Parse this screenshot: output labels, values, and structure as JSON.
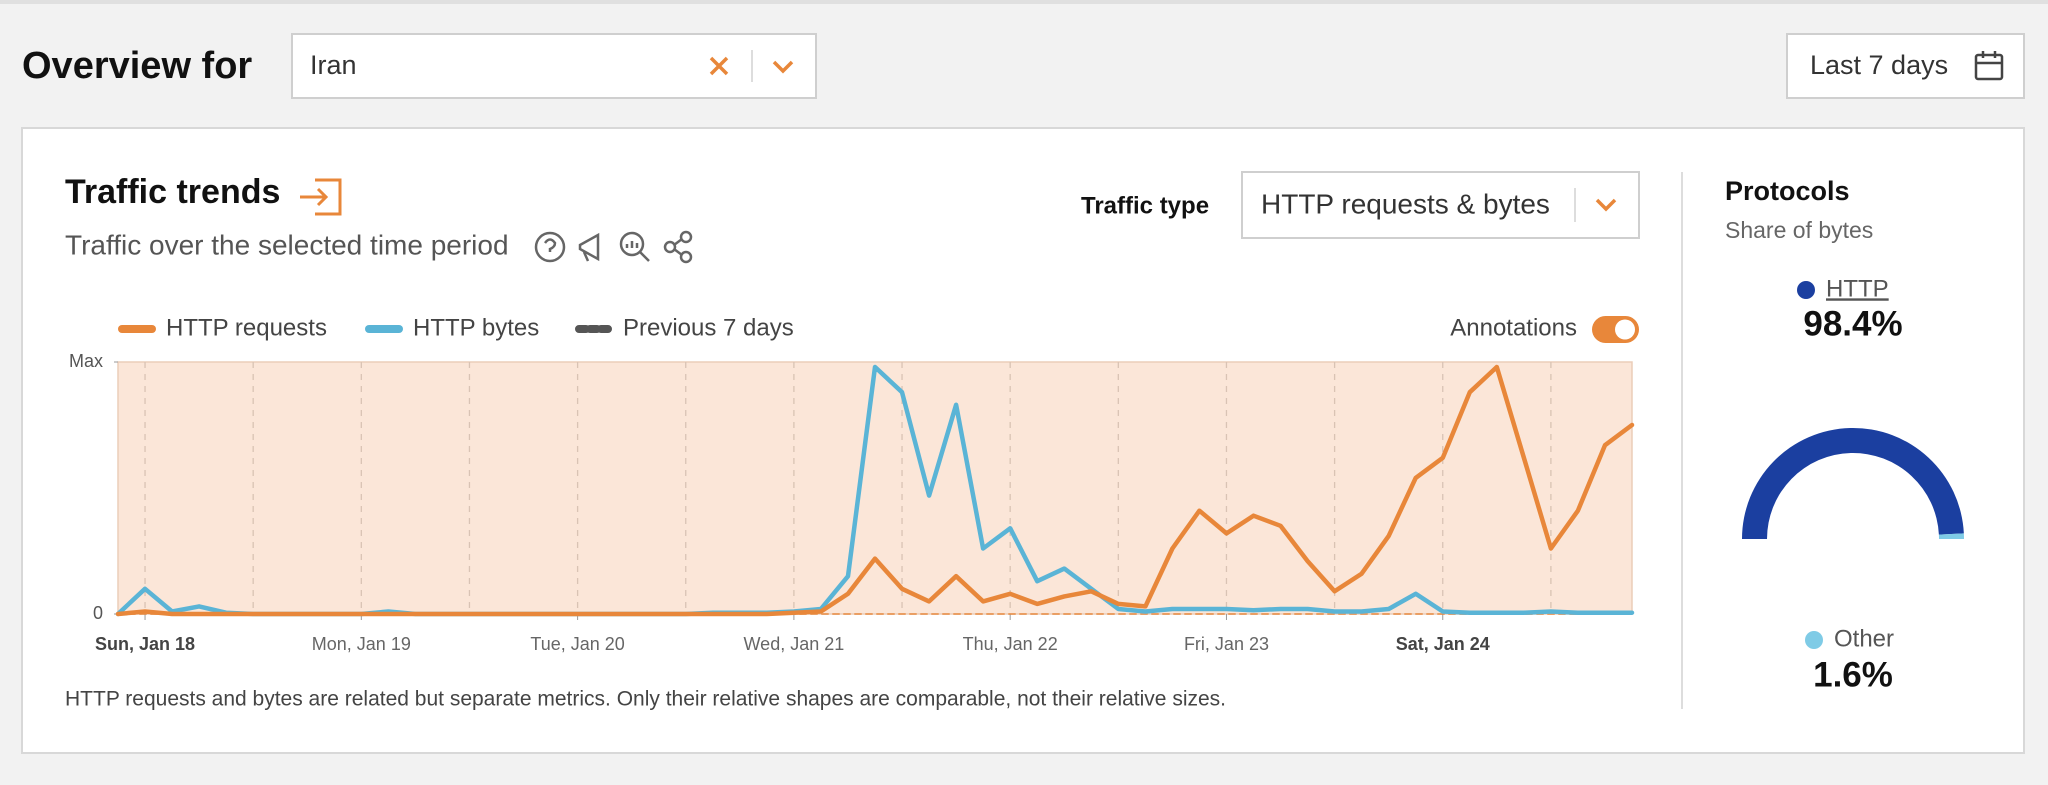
{
  "header": {
    "title": "Overview for",
    "location": "Iran",
    "date_range": "Last 7 days"
  },
  "panel": {
    "title": "Traffic trends",
    "subtitle": "Traffic over the selected time period",
    "traffic_type_label": "Traffic type",
    "traffic_type": "HTTP requests & bytes",
    "annotations_label": "Annotations",
    "footnote": "HTTP requests and bytes are related but separate metrics. Only their relative shapes are comparable, not their relative sizes."
  },
  "protocols": {
    "title": "Protocols",
    "subtitle": "Share of bytes"
  },
  "chart_data": [
    {
      "type": "line",
      "categories": [
        null,
        "Sun, Jan 18",
        null,
        null,
        null,
        null,
        null,
        null,
        null,
        "Mon, Jan 19",
        null,
        null,
        null,
        null,
        null,
        null,
        null,
        "Tue, Jan 20",
        null,
        null,
        null,
        null,
        null,
        null,
        null,
        "Wed, Jan 21",
        null,
        null,
        null,
        null,
        null,
        null,
        null,
        "Thu, Jan 22",
        null,
        null,
        null,
        null,
        null,
        null,
        null,
        "Fri, Jan 23",
        null,
        null,
        null,
        null,
        null,
        null,
        null,
        "Sat, Jan 24",
        null,
        null,
        null,
        null,
        null,
        null,
        null
      ],
      "ylim": [
        0,
        1
      ],
      "yticks": [
        0,
        {
          "value": 1,
          "label": "Max"
        }
      ],
      "series": [
        {
          "name": "HTTP requests",
          "color": "#e8873a",
          "values": [
            0,
            0.01,
            0,
            0,
            0,
            0,
            0,
            0,
            0,
            0,
            0,
            0,
            0,
            0,
            0,
            0,
            0,
            0,
            0,
            0,
            0,
            0,
            0,
            0,
            0,
            0.005,
            0.01,
            0.08,
            0.22,
            0.1,
            0.05,
            0.15,
            0.05,
            0.08,
            0.04,
            0.07,
            0.09,
            0.04,
            0.03,
            0.26,
            0.41,
            0.32,
            0.39,
            0.35,
            0.21,
            0.09,
            0.16,
            0.31,
            0.54,
            0.62,
            0.88,
            0.98,
            0.62,
            0.26,
            0.41,
            0.67,
            0.75
          ]
        },
        {
          "name": "HTTP bytes",
          "color": "#5ab4d6",
          "values": [
            0,
            0.1,
            0.01,
            0.03,
            0.005,
            0,
            0,
            0,
            0,
            0,
            0.01,
            0,
            0,
            0,
            0,
            0,
            0,
            0,
            0,
            0,
            0,
            0,
            0.005,
            0.005,
            0.005,
            0.01,
            0.02,
            0.15,
            0.98,
            0.88,
            0.47,
            0.83,
            0.26,
            0.34,
            0.13,
            0.18,
            0.1,
            0.02,
            0.01,
            0.02,
            0.02,
            0.02,
            0.015,
            0.02,
            0.02,
            0.01,
            0.01,
            0.02,
            0.08,
            0.01,
            0.005,
            0.005,
            0.005,
            0.01,
            0.005,
            0.005,
            0.005
          ]
        },
        {
          "name": "Previous 7 days",
          "color": "#555555",
          "dashed": true,
          "values": [
            0,
            0,
            0,
            0,
            0,
            0,
            0,
            0,
            0,
            0,
            0,
            0,
            0,
            0,
            0,
            0,
            0,
            0,
            0,
            0,
            0,
            0,
            0,
            0,
            0,
            0,
            0,
            0,
            0,
            0,
            0,
            0,
            0,
            0,
            0,
            0,
            0,
            0,
            0,
            0,
            0,
            0,
            0,
            0,
            0,
            0,
            0,
            0,
            0,
            0,
            0,
            0,
            0,
            0,
            0,
            0,
            0
          ]
        }
      ],
      "background": "#fbe6d8",
      "grid": true
    },
    {
      "type": "pie",
      "categories": [
        "HTTP",
        "Other"
      ],
      "values": [
        98.4,
        1.6
      ],
      "value_labels": [
        "98.4%",
        "1.6%"
      ],
      "colors": [
        "#1b3fa0",
        "#7fcbe6"
      ]
    }
  ]
}
